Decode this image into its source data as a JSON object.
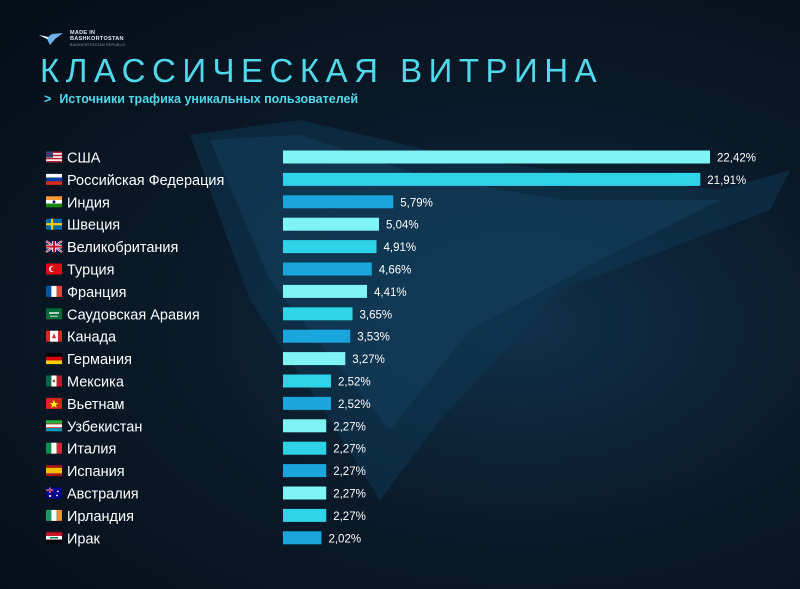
{
  "logo": {
    "line1": "MADE IN",
    "line2": "BASHKORTOSTAN",
    "line3": "BASHKORTOSTAN REPUBLIC"
  },
  "title": "КЛАССИЧЕСКАЯ ВИТРИНА",
  "subtitle_arrow": ">",
  "subtitle": "Источники трафика уникальных пользователей",
  "colors": {
    "accent": "#4fd9ea",
    "background": "#0a1a2a",
    "bar_palette": [
      "#7ff4f4",
      "#2fd3e8",
      "#1aa6dc"
    ]
  },
  "chart_data": {
    "type": "bar",
    "orientation": "horizontal",
    "categories": [
      "США",
      "Российская Федерация",
      "Индия",
      "Швеция",
      "Великобритания",
      "Турция",
      "Франция",
      "Саудовская Аравия",
      "Канада",
      "Германия",
      "Мексика",
      "Вьетнам",
      "Узбекистан",
      "Италия",
      "Испания",
      "Австралия",
      "Ирландия",
      "Ирак"
    ],
    "flags": [
      "us",
      "ru",
      "in",
      "se",
      "gb",
      "tr",
      "fr",
      "sa",
      "ca",
      "de",
      "mx",
      "vn",
      "uz",
      "it",
      "es",
      "au",
      "ie",
      "iq"
    ],
    "values": [
      22.42,
      21.91,
      5.79,
      5.04,
      4.91,
      4.66,
      4.41,
      3.65,
      3.53,
      3.27,
      2.52,
      2.52,
      2.27,
      2.27,
      2.27,
      2.27,
      2.27,
      2.02
    ],
    "labels": [
      "22,42%",
      "21,91%",
      "5,79%",
      "5,04%",
      "4,91%",
      "4,66%",
      "4,41%",
      "3,65%",
      "3,53%",
      "3,27%",
      "2,52%",
      "2,52%",
      "2,27%",
      "2,27%",
      "2,27%",
      "2,27%",
      "2,27%",
      "2,02%"
    ],
    "title": "",
    "xlabel": "",
    "ylabel": "",
    "grid": false,
    "legend": "none"
  }
}
